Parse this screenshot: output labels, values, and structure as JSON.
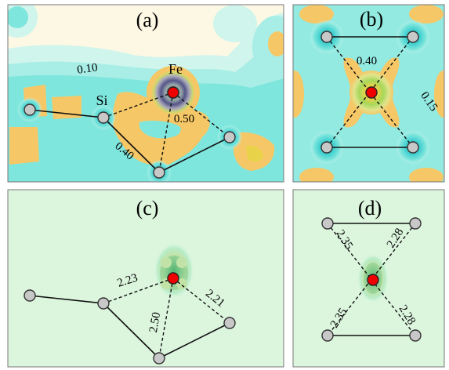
{
  "panels": [
    {
      "id": "a",
      "label": "(a)"
    },
    {
      "id": "b",
      "label": "(b)"
    },
    {
      "id": "c",
      "label": "(c)"
    },
    {
      "id": "d",
      "label": "(d)"
    }
  ],
  "atom_labels": {
    "fe": "Fe",
    "si": "Si"
  },
  "contour_labels": {
    "a_outer": "0.10",
    "a_bond_left": "0.40",
    "a_bond_fe": "0.50",
    "b_upper": "0.40",
    "b_right": "0.15"
  },
  "bond_lengths": {
    "c_left": "2.23",
    "c_right": "2.21",
    "c_bottom": "2.50",
    "d_top_left": "2.35",
    "d_top_right": "2.28",
    "d_bottom_left": "2.35",
    "d_bottom_right": "2.28"
  },
  "colors": {
    "bg_cream": "#fdf8e4",
    "cyan_pale": "#cff5ec",
    "cyan": "#7fe6dd",
    "cyan_deep": "#3fcfcf",
    "orange": "#f6c766",
    "mint": "#dcf6de",
    "fe_red": "#ee0000",
    "si_gray": "#c8c8c8"
  }
}
